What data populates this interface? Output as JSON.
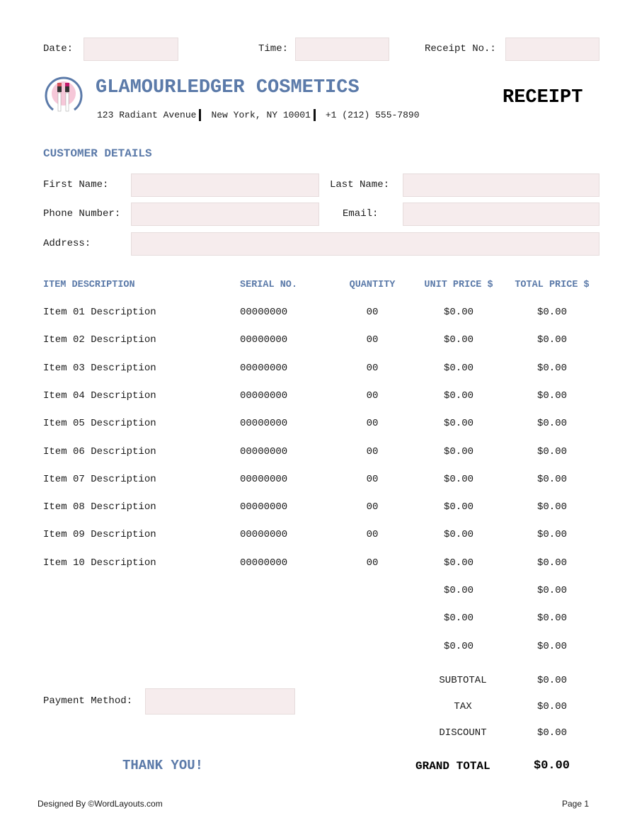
{
  "top": {
    "date_label": "Date:",
    "time_label": "Time:",
    "receipt_no_label": "Receipt No.:"
  },
  "company": {
    "name": "GLAMOURLEDGER COSMETICS",
    "address": "123 Radiant Avenue",
    "city": "New York, NY 10001",
    "phone": "+1 (212) 555-7890",
    "logo": "lipstick-logo-icon"
  },
  "doc_title": "RECEIPT",
  "customer": {
    "heading": "CUSTOMER DETAILS",
    "first_name": "First Name:",
    "last_name": "Last Name:",
    "phone": "Phone Number:",
    "email": "Email:",
    "address": "Address:"
  },
  "table": {
    "headers": [
      "ITEM DESCRIPTION",
      "SERIAL NO.",
      "QUANTITY",
      "UNIT PRICE $",
      "TOTAL PRICE $"
    ],
    "rows": [
      [
        "Item 01 Description",
        "00000000",
        "00",
        "$0.00",
        "$0.00"
      ],
      [
        "Item 02 Description",
        "00000000",
        "00",
        "$0.00",
        "$0.00"
      ],
      [
        "Item 03 Description",
        "00000000",
        "00",
        "$0.00",
        "$0.00"
      ],
      [
        "Item 04 Description",
        "00000000",
        "00",
        "$0.00",
        "$0.00"
      ],
      [
        "Item 05 Description",
        "00000000",
        "00",
        "$0.00",
        "$0.00"
      ],
      [
        "Item 06 Description",
        "00000000",
        "00",
        "$0.00",
        "$0.00"
      ],
      [
        "Item 07 Description",
        "00000000",
        "00",
        "$0.00",
        "$0.00"
      ],
      [
        "Item 08 Description",
        "00000000",
        "00",
        "$0.00",
        "$0.00"
      ],
      [
        "Item 09 Description",
        "00000000",
        "00",
        "$0.00",
        "$0.00"
      ],
      [
        "Item 10 Description",
        "00000000",
        "00",
        "$0.00",
        "$0.00"
      ],
      [
        "",
        "",
        "",
        "$0.00",
        "$0.00"
      ],
      [
        "",
        "",
        "",
        "$0.00",
        "$0.00"
      ],
      [
        "",
        "",
        "",
        "$0.00",
        "$0.00"
      ]
    ]
  },
  "summary": {
    "subtotal_label": "SUBTOTAL",
    "subtotal": "$0.00",
    "tax_label": "TAX",
    "tax": "$0.00",
    "discount_label": "DISCOUNT",
    "discount": "$0.00",
    "grand_total_label": "GRAND TOTAL",
    "grand_total": "$0.00"
  },
  "payment_label": "Payment Method:",
  "thank_you": "THANK YOU!",
  "footer": {
    "designed_by": "Designed By ©WordLayouts.com",
    "page": "Page 1"
  },
  "colors": {
    "accent": "#5b7aa9",
    "field_bg": "#f6eced"
  }
}
